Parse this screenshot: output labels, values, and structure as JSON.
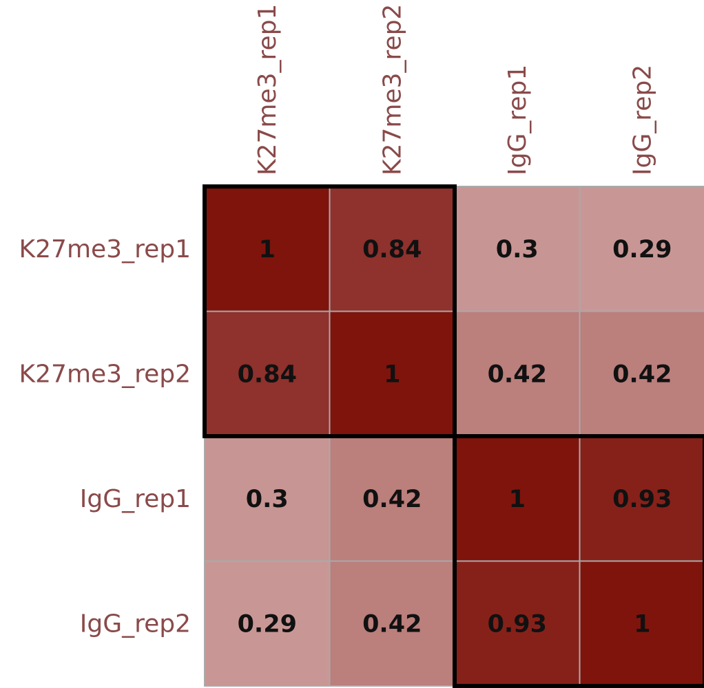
{
  "chart_data": {
    "type": "heatmap",
    "row_labels": [
      "K27me3_rep1",
      "K27me3_rep2",
      "IgG_rep1",
      "IgG_rep2"
    ],
    "col_labels": [
      "K27me3_rep1",
      "K27me3_rep2",
      "IgG_rep1",
      "IgG_rep2"
    ],
    "values": [
      [
        1,
        0.84,
        0.3,
        0.29
      ],
      [
        0.84,
        1,
        0.42,
        0.42
      ],
      [
        0.3,
        0.42,
        1,
        0.93
      ],
      [
        0.29,
        0.42,
        0.93,
        1
      ]
    ],
    "value_labels": [
      [
        "1",
        "0.84",
        "0.3",
        "0.29"
      ],
      [
        "0.84",
        "1",
        "0.42",
        "0.42"
      ],
      [
        "0.3",
        "0.42",
        "1",
        "0.93"
      ],
      [
        "0.29",
        "0.42",
        "0.93",
        "1"
      ]
    ],
    "clusters": [
      {
        "members": [
          "K27me3_rep1",
          "K27me3_rep2"
        ]
      },
      {
        "members": [
          "IgG_rep1",
          "IgG_rep2"
        ]
      }
    ],
    "color_low": "#e6cccc",
    "color_high": "#7f140d",
    "label_color": "#8a4a4a",
    "grid_color": "#aaaaaa",
    "value_text_color": "#111111",
    "cluster_box_color": "#000000"
  }
}
